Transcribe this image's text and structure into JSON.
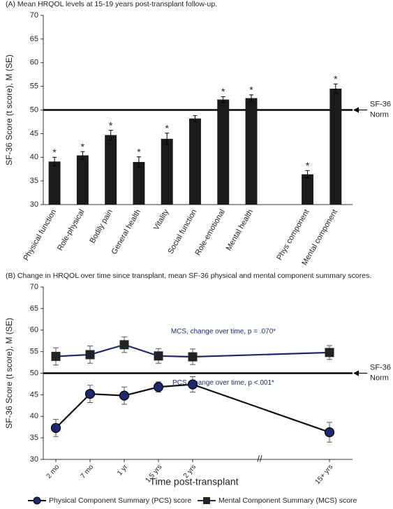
{
  "chart_data": [
    {
      "type": "bar",
      "title": "(A) Mean HRQOL levels at 15-19 years post-transplant follow-up.",
      "y_label": "SF-36 Score (t score), M (SE)",
      "categories": [
        "Physical function",
        "Role-physical",
        "Bodily pain",
        "General health",
        "Vitality",
        "Social function",
        "Role-emotional",
        "Mental health",
        null,
        "Phys component",
        "Mental component"
      ],
      "values": [
        39.1,
        40.4,
        44.7,
        39.0,
        43.9,
        48.2,
        52.2,
        52.5,
        null,
        36.4,
        54.5
      ],
      "errors": [
        0.9,
        0.8,
        1.0,
        1.1,
        1.2,
        0.6,
        0.6,
        0.7,
        null,
        0.8,
        1.0
      ],
      "annotations": [
        "*",
        "*",
        "*",
        "*",
        "*",
        null,
        "*",
        "*",
        null,
        "*",
        "*"
      ],
      "color": "#1a1a1a",
      "ylim": [
        30,
        70
      ],
      "yticks": [
        30,
        35,
        40,
        45,
        50,
        55,
        60,
        65,
        70
      ],
      "reference_line": {
        "value": 50,
        "label_lines": [
          "SF-36",
          "Norm"
        ]
      }
    },
    {
      "type": "line",
      "title": "(B) Change in HRQOL over time since transplant, mean SF-36 physical and mental component summary scores.",
      "y_label": "SF-36 Score (t score), M (SE)",
      "x_label": "Time post-transplant",
      "categories": [
        "2 mo",
        "7 mo",
        "1 yr",
        "1.5 yrs",
        "2 yrs",
        "15+ yrs"
      ],
      "axis_break": "//",
      "series": [
        {
          "name": "Physical Component Summary (PCS) score",
          "color": "#111111",
          "marker": "circle",
          "marker_color": "#1f2a6e",
          "values": [
            37.3,
            45.2,
            44.8,
            46.8,
            47.4,
            36.3
          ],
          "errors": [
            2.0,
            2.0,
            2.0,
            1.2,
            1.8,
            2.3
          ],
          "annotation": "PCS, change over time, p <.001*"
        },
        {
          "name": "Mental Component Summary (MCS) score",
          "color": "#1f2a6e",
          "marker": "square",
          "marker_color": "#222222",
          "values": [
            53.9,
            54.3,
            56.6,
            54.0,
            53.8,
            54.8
          ],
          "errors": [
            2.0,
            2.0,
            1.8,
            1.7,
            1.8,
            1.6
          ],
          "annotation": "MCS, change over time, p = .070*"
        }
      ],
      "ylim": [
        30,
        70
      ],
      "yticks": [
        30,
        35,
        40,
        45,
        50,
        55,
        60,
        65,
        70
      ],
      "reference_line": {
        "value": 50,
        "label_lines": [
          "SF-36",
          "Norm"
        ]
      },
      "legend": "bottom"
    }
  ]
}
